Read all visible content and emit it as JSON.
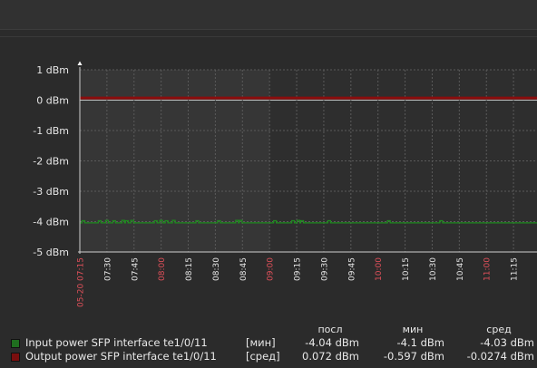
{
  "chart_data": {
    "type": "line",
    "y_unit": "dBm",
    "ylim": [
      -5,
      1
    ],
    "yticks": [
      {
        "value": 1,
        "label": "1 dBm"
      },
      {
        "value": 0,
        "label": "0 dBm"
      },
      {
        "value": -1,
        "label": "-1 dBm"
      },
      {
        "value": -2,
        "label": "-2 dBm"
      },
      {
        "value": -3,
        "label": "-3 dBm"
      },
      {
        "value": -4,
        "label": "-4 dBm"
      },
      {
        "value": -5,
        "label": "-5 dBm"
      }
    ],
    "xlim": [
      "05-20 07:15",
      "05-20 11:28"
    ],
    "xticks": [
      {
        "time": "07:15",
        "label": "05-20 07:15",
        "highlight": true
      },
      {
        "time": "07:30",
        "label": "07:30",
        "highlight": false
      },
      {
        "time": "07:45",
        "label": "07:45",
        "highlight": false
      },
      {
        "time": "08:00",
        "label": "08:00",
        "highlight": true
      },
      {
        "time": "08:15",
        "label": "08:15",
        "highlight": false
      },
      {
        "time": "08:30",
        "label": "08:30",
        "highlight": false
      },
      {
        "time": "08:45",
        "label": "08:45",
        "highlight": false
      },
      {
        "time": "09:00",
        "label": "09:00",
        "highlight": true
      },
      {
        "time": "09:15",
        "label": "09:15",
        "highlight": false
      },
      {
        "time": "09:30",
        "label": "09:30",
        "highlight": false
      },
      {
        "time": "09:45",
        "label": "09:45",
        "highlight": false
      },
      {
        "time": "10:00",
        "label": "10:00",
        "highlight": true
      },
      {
        "time": "10:15",
        "label": "10:15",
        "highlight": false
      },
      {
        "time": "10:30",
        "label": "10:30",
        "highlight": false
      },
      {
        "time": "10:45",
        "label": "10:45",
        "highlight": false
      },
      {
        "time": "11:00",
        "label": "11:00",
        "highlight": true
      },
      {
        "time": "11:15",
        "label": "11:15",
        "highlight": false
      }
    ],
    "shaded_range": [
      "07:15",
      "09:00"
    ],
    "grid": true,
    "series": [
      {
        "name": "Input power SFP interface te1/0/11",
        "color": "#1f8a1f",
        "baseline": -4.04,
        "spikes": [
          {
            "time": "07:17",
            "value": -3.97
          },
          {
            "time": "07:26",
            "value": -3.97
          },
          {
            "time": "07:30",
            "value": -3.96
          },
          {
            "time": "07:34",
            "value": -3.97
          },
          {
            "time": "07:39",
            "value": -3.96
          },
          {
            "time": "07:41",
            "value": -3.97
          },
          {
            "time": "07:44",
            "value": -3.96
          },
          {
            "time": "07:57",
            "value": -3.97
          },
          {
            "time": "08:00",
            "value": -3.96
          },
          {
            "time": "08:03",
            "value": -3.97
          },
          {
            "time": "08:07",
            "value": -3.96
          },
          {
            "time": "08:20",
            "value": -3.97
          },
          {
            "time": "08:32",
            "value": -3.97
          },
          {
            "time": "08:42",
            "value": -3.96
          },
          {
            "time": "08:44",
            "value": -3.96
          },
          {
            "time": "09:03",
            "value": -3.97
          },
          {
            "time": "09:13",
            "value": -3.97
          },
          {
            "time": "09:16",
            "value": -3.96
          },
          {
            "time": "09:18",
            "value": -3.97
          },
          {
            "time": "09:33",
            "value": -3.97
          },
          {
            "time": "10:06",
            "value": -3.97
          },
          {
            "time": "10:35",
            "value": -3.97
          }
        ]
      },
      {
        "name": "Output power SFP interface te1/0/11",
        "color": "#8b0d0d",
        "baseline": 0.072,
        "spikes": []
      }
    ]
  },
  "legend": {
    "columns": [
      "посл",
      "мин",
      "сред"
    ],
    "rows": [
      {
        "name": "Input power SFP interface te1/0/11",
        "func": "[мин]",
        "color": "#1f6e1f",
        "last": "-4.04 dBm",
        "min": "-4.1 dBm",
        "avg": "-4.03 dBm"
      },
      {
        "name": "Output power SFP interface te1/0/11",
        "func": "[сред]",
        "color": "#7a0e0e",
        "last": "0.072 dBm",
        "min": "-0.597 dBm",
        "avg": "-0.0274 dBm"
      }
    ]
  }
}
